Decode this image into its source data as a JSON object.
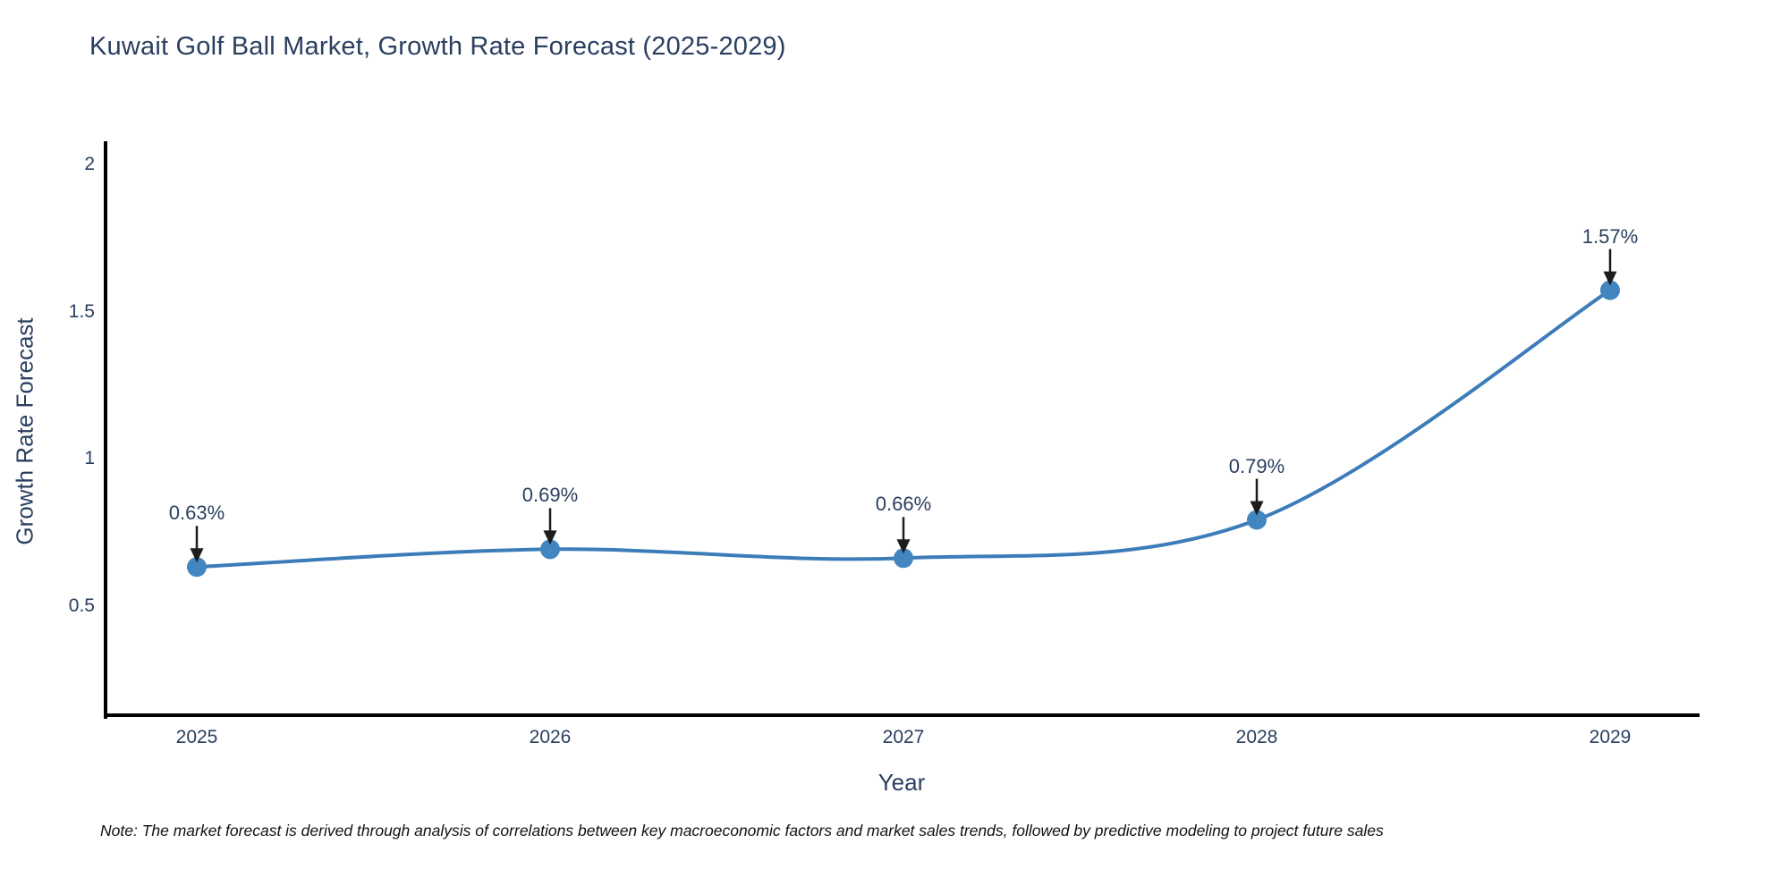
{
  "title": "Kuwait Golf Ball Market, Growth Rate Forecast (2025-2029)",
  "note": "Note: The market forecast is derived through analysis of correlations between key macroeconomic factors and market sales trends, followed by predictive modeling to project future sales",
  "chart_data": {
    "type": "line",
    "title": "Kuwait Golf Ball Market, Growth Rate Forecast (2025-2029)",
    "xlabel": "Year",
    "ylabel": "Growth Rate Forecast",
    "categories": [
      "2025",
      "2026",
      "2027",
      "2028",
      "2029"
    ],
    "x": [
      2025,
      2026,
      2027,
      2028,
      2029
    ],
    "values": [
      0.63,
      0.69,
      0.66,
      0.79,
      1.57
    ],
    "point_labels": [
      "0.63%",
      "0.69%",
      "0.66%",
      "0.79%",
      "1.57%"
    ],
    "series_name": "Growth Rate Forecast",
    "y_ticks": [
      0.5,
      1,
      1.5,
      2
    ],
    "y_tick_labels": [
      "0.5",
      "1",
      "1.5",
      "2"
    ],
    "ylim": [
      0.13,
      2.07
    ],
    "line_shape": "spline",
    "grid": false,
    "legend": "none",
    "annotation_style": "value label with black arrow pointing down to marker",
    "colors": {
      "line": "#3c7cb8",
      "marker": "#4186c0",
      "arrow": "#1c1c1c",
      "text": "#2a3f5f",
      "axis": "#000000",
      "note_text": "#111111",
      "background": "#ffffff"
    }
  }
}
